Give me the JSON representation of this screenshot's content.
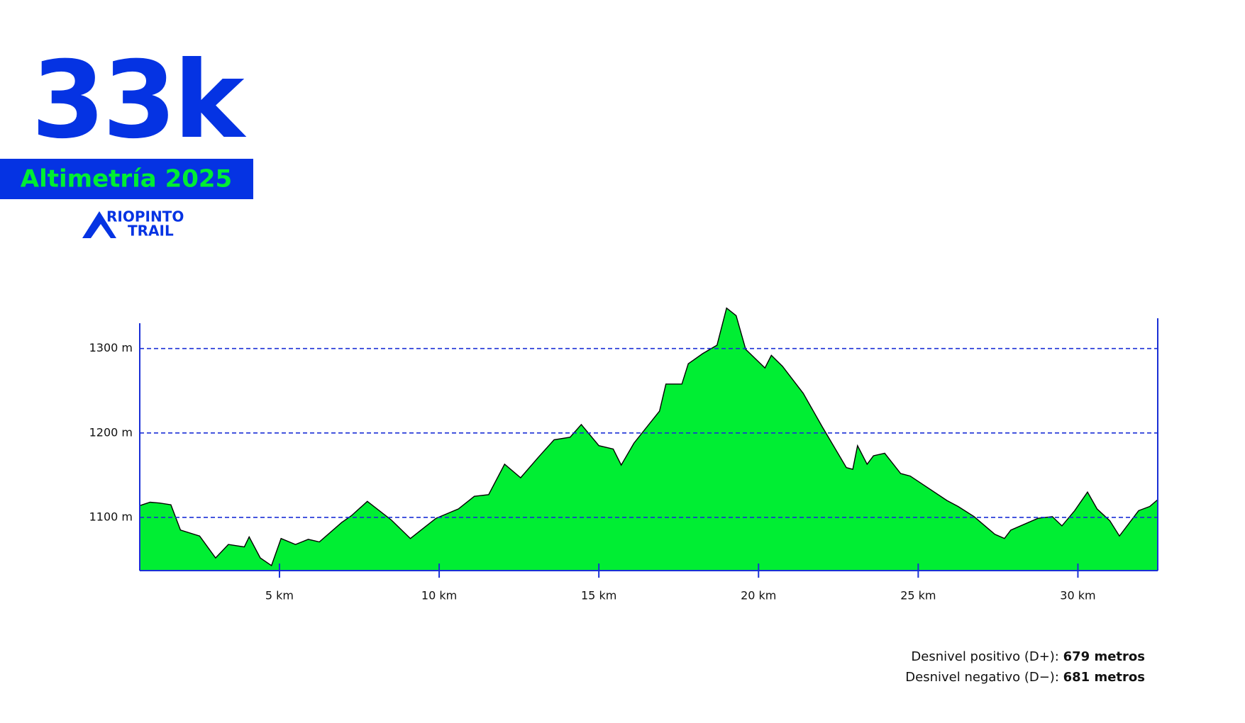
{
  "header": {
    "title": "33k",
    "subtitle": "Altimetría 2025",
    "logo_top": "RIOPINTO",
    "logo_bottom": "TRAIL"
  },
  "chart_data": {
    "type": "area",
    "fill": "#00ee33",
    "line_color": "#000000",
    "grid_color": "#1a2fd6",
    "grid": true,
    "x": [
      0.625,
      0.95,
      1.25,
      1.6,
      1.9,
      2.5,
      3.0,
      3.4,
      3.9,
      4.05,
      4.4,
      4.75,
      5.05,
      5.5,
      5.9,
      6.25,
      6.95,
      7.25,
      7.75,
      8.5,
      9.1,
      9.5,
      9.9,
      10.6,
      11.1,
      11.55,
      12.05,
      12.55,
      13.1,
      13.6,
      14.1,
      14.45,
      15.0,
      15.45,
      15.7,
      16.1,
      16.9,
      17.1,
      17.6,
      17.8,
      18.25,
      18.7,
      19.0,
      19.3,
      19.6,
      20.2,
      20.4,
      20.75,
      21.4,
      22.0,
      22.75,
      22.95,
      23.1,
      23.4,
      23.6,
      23.95,
      24.45,
      24.75,
      25.9,
      26.25,
      26.75,
      27.4,
      27.7,
      27.9,
      28.75,
      29.2,
      29.5,
      29.9,
      30.3,
      30.6,
      31.0,
      31.3,
      31.9,
      32.25,
      32.5
    ],
    "values": [
      1114,
      1118,
      1117,
      1115,
      1085,
      1078,
      1052,
      1068,
      1065,
      1077,
      1052,
      1043,
      1075,
      1068,
      1074,
      1071,
      1094,
      1102,
      1119,
      1097,
      1075,
      1087,
      1099,
      1110,
      1125,
      1127,
      1163,
      1147,
      1171,
      1192,
      1195,
      1210,
      1185,
      1181,
      1162,
      1188,
      1226,
      1258,
      1258,
      1282,
      1294,
      1304,
      1348,
      1339,
      1299,
      1277,
      1292,
      1279,
      1247,
      1207,
      1159,
      1157,
      1185,
      1163,
      1173,
      1176,
      1152,
      1149,
      1120,
      1113,
      1101,
      1080,
      1075,
      1085,
      1099,
      1101,
      1090,
      1108,
      1130,
      1110,
      1096,
      1078,
      1108,
      1113,
      1121
    ],
    "xlim": [
      0.625,
      32.5
    ],
    "ylim": [
      1037,
      1330
    ],
    "xticks": [
      {
        "value": 5,
        "label": "5 km"
      },
      {
        "value": 10,
        "label": "10 km"
      },
      {
        "value": 15,
        "label": "15 km"
      },
      {
        "value": 20,
        "label": "20 km"
      },
      {
        "value": 25,
        "label": "25 km"
      },
      {
        "value": 30,
        "label": "30 km"
      }
    ],
    "yticks": [
      {
        "value": 1100,
        "label": "1100 m"
      },
      {
        "value": 1200,
        "label": "1200 m"
      },
      {
        "value": 1300,
        "label": "1300 m"
      }
    ]
  },
  "stats": [
    {
      "label": "Desnivel positivo (D+):",
      "value": "679 metros"
    },
    {
      "label": "Desnivel negativo (D−):",
      "value": "681 metros"
    }
  ]
}
